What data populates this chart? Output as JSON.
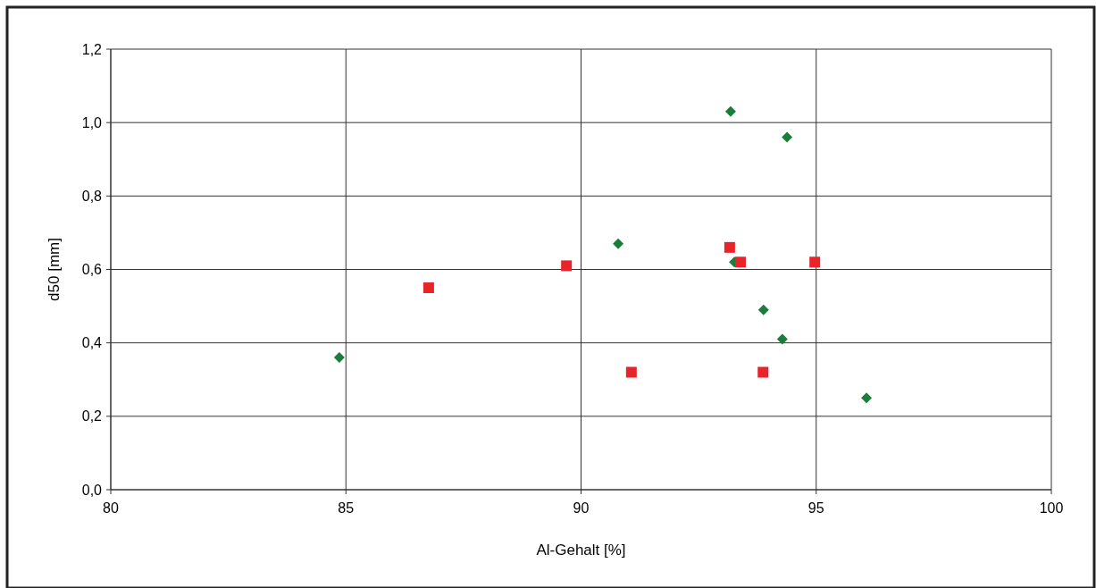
{
  "chart_data": {
    "type": "scatter",
    "xlabel": "Al-Gehalt [%]",
    "ylabel": "d50 [mm]",
    "xlim": [
      80,
      100
    ],
    "xticks": [
      80,
      85,
      90,
      95,
      100
    ],
    "ylim": [
      0,
      1.2
    ],
    "yticks": [
      {
        "value": 0,
        "label": "0,0"
      },
      {
        "value": 0.2,
        "label": "0,2"
      },
      {
        "value": 0.4,
        "label": "0,4"
      },
      {
        "value": 0.6,
        "label": "0,6"
      },
      {
        "value": 0.8,
        "label": "0,8"
      },
      {
        "value": 1.0,
        "label": "1,0"
      },
      {
        "value": 1.2,
        "label": "1,2"
      }
    ],
    "grid": true,
    "series": [
      {
        "color": "#1b7d3a",
        "marker": "diamond",
        "x": [
          84.86,
          90.79,
          93.18,
          94.38,
          93.26,
          93.88,
          94.28,
          96.07
        ],
        "values": [
          0.36,
          0.67,
          1.03,
          0.96,
          0.62,
          0.49,
          0.41,
          0.25
        ]
      },
      {
        "color": "#e8242b",
        "marker": "square",
        "x": [
          86.76,
          89.69,
          91.07,
          93.16,
          93.39,
          93.87,
          94.97
        ],
        "values": [
          0.55,
          0.61,
          0.32,
          0.66,
          0.62,
          0.32,
          0.62
        ]
      }
    ]
  }
}
